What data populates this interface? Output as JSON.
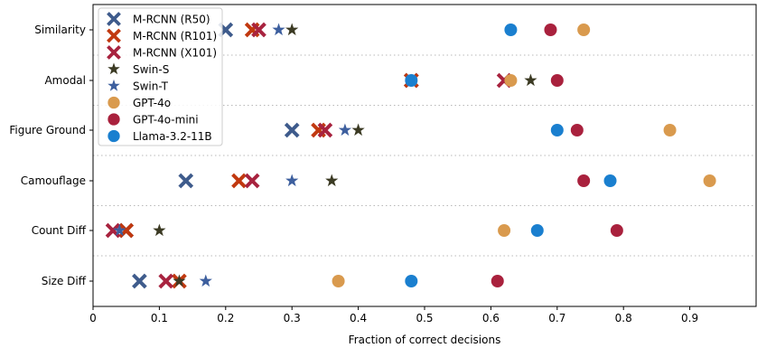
{
  "chart_data": {
    "type": "scatter",
    "title": "",
    "xlabel": "Fraction of correct decisions",
    "ylabel": "",
    "xlim": [
      0,
      1.0
    ],
    "x_ticks": [
      0,
      0.1,
      0.2,
      0.3,
      0.4,
      0.5,
      0.6,
      0.7,
      0.8,
      0.9
    ],
    "x_tick_labels": [
      "0",
      "0.1",
      "0.2",
      "0.3",
      "0.4",
      "0.5",
      "0.6",
      "0.7",
      "0.8",
      "0.9"
    ],
    "categories": [
      "Similarity",
      "Amodal",
      "Figure Ground",
      "Camouflage",
      "Count Diff",
      "Size Diff"
    ],
    "grid": "horizontal dotted separators between categories",
    "legend_position": "top-left",
    "series": [
      {
        "name": "M-RCNN (R50)",
        "marker": "x",
        "color": "#3e5b8c",
        "values": [
          0.2,
          0.48,
          0.3,
          0.14,
          0.05,
          0.07
        ]
      },
      {
        "name": "M-RCNN (R101)",
        "marker": "x",
        "color": "#c1380f",
        "values": [
          0.24,
          0.48,
          0.34,
          0.22,
          0.05,
          0.13
        ]
      },
      {
        "name": "M-RCNN (X101)",
        "marker": "x",
        "color": "#a8233f",
        "values": [
          0.25,
          0.62,
          0.35,
          0.24,
          0.03,
          0.11
        ]
      },
      {
        "name": "Swin-S",
        "marker": "star",
        "color": "#3b3a23",
        "values": [
          0.3,
          0.66,
          0.4,
          0.36,
          0.1,
          0.13
        ]
      },
      {
        "name": "Swin-T",
        "marker": "star",
        "color": "#3d5f9e",
        "values": [
          0.28,
          0.48,
          0.38,
          0.3,
          0.04,
          0.17
        ]
      },
      {
        "name": "GPT-4o",
        "marker": "circle",
        "color": "#d99a4e",
        "values": [
          0.74,
          0.63,
          0.87,
          0.93,
          0.62,
          0.37
        ]
      },
      {
        "name": "GPT-4o-mini",
        "marker": "circle",
        "color": "#a9213d",
        "values": [
          0.69,
          0.7,
          0.73,
          0.74,
          0.79,
          0.61
        ]
      },
      {
        "name": "Llama-3.2-11B",
        "marker": "circle",
        "color": "#1a7fcf",
        "values": [
          0.63,
          0.48,
          0.7,
          0.78,
          0.67,
          0.48
        ]
      }
    ]
  }
}
